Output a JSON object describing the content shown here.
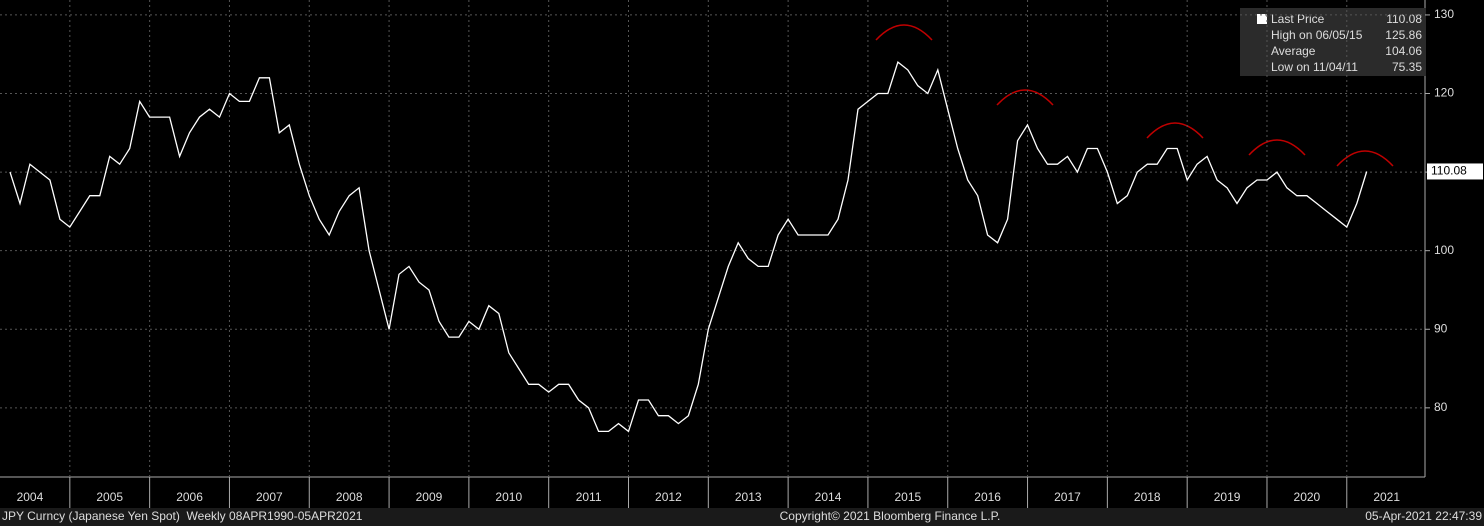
{
  "chart_data": {
    "type": "line",
    "series": [
      {
        "name": "Last Price",
        "color": "#ffffff",
        "values": [
          110,
          106,
          111,
          110,
          109,
          104,
          103,
          105,
          107,
          107,
          112,
          111,
          113,
          119,
          117,
          117,
          117,
          112,
          115,
          117,
          118,
          117,
          120,
          119,
          119,
          122,
          122,
          115,
          116,
          111,
          107,
          104,
          102,
          105,
          107,
          108,
          100,
          95,
          90,
          97,
          98,
          96,
          95,
          91,
          89,
          89,
          91,
          90,
          93,
          92,
          87,
          85,
          83,
          83,
          82,
          83,
          83,
          81,
          80,
          77,
          77,
          78,
          77,
          81,
          81,
          79,
          79,
          78,
          79,
          83,
          90,
          94,
          98,
          101,
          99,
          98,
          98,
          102,
          104,
          102,
          102,
          102,
          102,
          104,
          109,
          118,
          119,
          120,
          120,
          124,
          123,
          121,
          120,
          123,
          118,
          113,
          109,
          107,
          102,
          101,
          104,
          114,
          116,
          113,
          111,
          111,
          112,
          110,
          113,
          113,
          110,
          106,
          107,
          110,
          111,
          111,
          113,
          113,
          109,
          111,
          112,
          109,
          108,
          106,
          108,
          109,
          109,
          110,
          108,
          107,
          107,
          106,
          105,
          104,
          103,
          106,
          110.08
        ]
      }
    ],
    "x": [
      2004.25,
      2004.375,
      2004.5,
      2004.625,
      2004.75,
      2004.875,
      2005,
      2005.125,
      2005.25,
      2005.375,
      2005.5,
      2005.625,
      2005.75,
      2005.875,
      2006,
      2006.125,
      2006.25,
      2006.375,
      2006.5,
      2006.625,
      2006.75,
      2006.875,
      2007,
      2007.125,
      2007.25,
      2007.375,
      2007.5,
      2007.625,
      2007.75,
      2007.875,
      2008,
      2008.125,
      2008.25,
      2008.375,
      2008.5,
      2008.625,
      2008.75,
      2008.875,
      2009,
      2009.125,
      2009.25,
      2009.375,
      2009.5,
      2009.625,
      2009.75,
      2009.875,
      2010,
      2010.125,
      2010.25,
      2010.375,
      2010.5,
      2010.625,
      2010.75,
      2010.875,
      2011,
      2011.125,
      2011.25,
      2011.375,
      2011.5,
      2011.625,
      2011.75,
      2011.875,
      2012,
      2012.125,
      2012.25,
      2012.375,
      2012.5,
      2012.625,
      2012.75,
      2012.875,
      2013,
      2013.125,
      2013.25,
      2013.375,
      2013.5,
      2013.625,
      2013.75,
      2013.875,
      2014,
      2014.125,
      2014.25,
      2014.375,
      2014.5,
      2014.625,
      2014.75,
      2014.875,
      2015,
      2015.125,
      2015.25,
      2015.375,
      2015.5,
      2015.625,
      2015.75,
      2015.875,
      2016,
      2016.125,
      2016.25,
      2016.375,
      2016.5,
      2016.625,
      2016.75,
      2016.875,
      2017,
      2017.125,
      2017.25,
      2017.375,
      2017.5,
      2017.625,
      2017.75,
      2017.875,
      2018,
      2018.125,
      2018.25,
      2018.375,
      2018.5,
      2018.625,
      2018.75,
      2018.875,
      2019,
      2019.125,
      2019.25,
      2019.375,
      2019.5,
      2019.625,
      2019.75,
      2019.875,
      2020,
      2020.125,
      2020.25,
      2020.375,
      2020.5,
      2020.625,
      2020.75,
      2020.875,
      2021,
      2021.125,
      2021.25
    ],
    "xlim": [
      2004.125,
      2021.98
    ],
    "xticks": [
      {
        "value": 2004.5,
        "label": "2004"
      },
      {
        "value": 2005.5,
        "label": "2005"
      },
      {
        "value": 2006.5,
        "label": "2006"
      },
      {
        "value": 2007.5,
        "label": "2007"
      },
      {
        "value": 2008.5,
        "label": "2008"
      },
      {
        "value": 2009.5,
        "label": "2009"
      },
      {
        "value": 2010.5,
        "label": "2010"
      },
      {
        "value": 2011.5,
        "label": "2011"
      },
      {
        "value": 2012.5,
        "label": "2012"
      },
      {
        "value": 2013.5,
        "label": "2013"
      },
      {
        "value": 2014.5,
        "label": "2014"
      },
      {
        "value": 2015.5,
        "label": "2015"
      },
      {
        "value": 2016.5,
        "label": "2016"
      },
      {
        "value": 2017.5,
        "label": "2017"
      },
      {
        "value": 2018.5,
        "label": "2018"
      },
      {
        "value": 2019.5,
        "label": "2019"
      },
      {
        "value": 2020.5,
        "label": "2020"
      },
      {
        "value": 2021.5,
        "label": "2021"
      }
    ],
    "ylim": [
      71.2,
      131.9
    ],
    "yticks": [
      80,
      90,
      100,
      110,
      120,
      130
    ],
    "grid": true,
    "last_value": 110.08,
    "legend_stats": [
      {
        "label": "High on 06/05/15",
        "value": 125.86
      },
      {
        "label": "Average",
        "value": 104.06
      },
      {
        "label": "Low on 11/04/11",
        "value": 75.35
      }
    ],
    "footer": {
      "left": "JPY Curncy (Japanese Yen Spot)  Weekly 08APR1990-05APR2021",
      "center": "Copyright© 2021 Bloomberg Finance L.P.",
      "right": "05-Apr-2021 22:47:39"
    }
  }
}
